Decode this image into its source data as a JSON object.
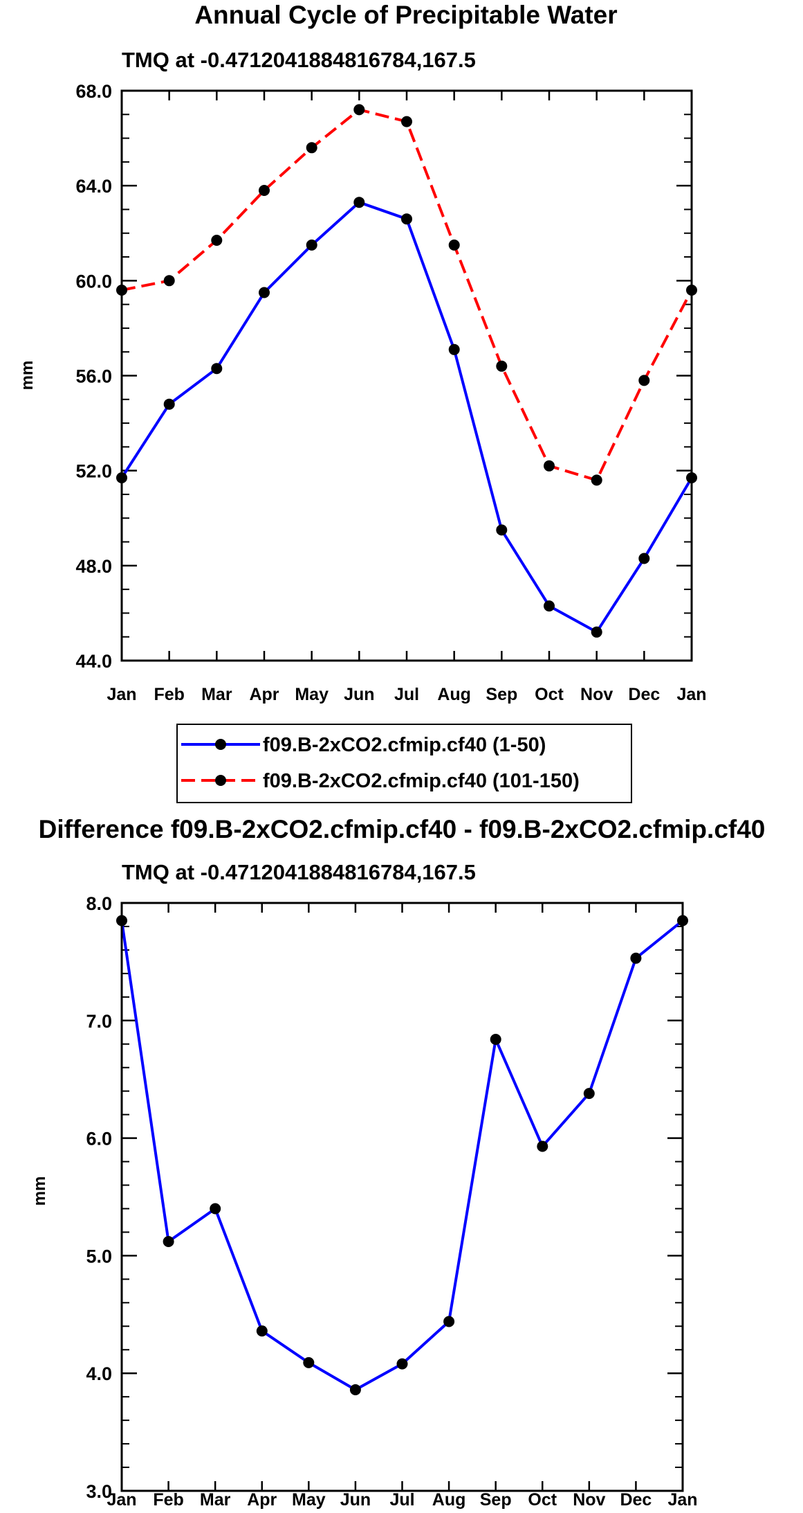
{
  "chart_data": [
    {
      "type": "line",
      "title": "Annual Cycle of Precipitable Water",
      "subtitle": "TMQ at -0.4712041884816784,167.5",
      "xlabel": "",
      "ylabel": "mm",
      "categories": [
        "Jan",
        "Feb",
        "Mar",
        "Apr",
        "May",
        "Jun",
        "Jul",
        "Aug",
        "Sep",
        "Oct",
        "Nov",
        "Dec",
        "Jan"
      ],
      "ylim": [
        44.0,
        68.0
      ],
      "yticks": [
        "44.0",
        "48.0",
        "52.0",
        "56.0",
        "60.0",
        "64.0",
        "68.0"
      ],
      "series": [
        {
          "name": "f09.B-2xCO2.cfmip.cf40 (1-50)",
          "color": "#0000ff",
          "dash": "solid",
          "values": [
            51.7,
            54.8,
            56.3,
            59.5,
            61.5,
            63.3,
            62.6,
            57.1,
            49.5,
            46.3,
            45.2,
            48.3,
            51.7
          ]
        },
        {
          "name": "f09.B-2xCO2.cfmip.cf40 (101-150)",
          "color": "#ff0000",
          "dash": "dashed",
          "values": [
            59.6,
            60.0,
            61.7,
            63.8,
            65.6,
            67.2,
            66.7,
            61.5,
            56.4,
            52.2,
            51.6,
            55.8,
            59.6
          ]
        }
      ],
      "legend": "below"
    },
    {
      "type": "line",
      "title": "Difference f09.B-2xCO2.cfmip.cf40 - f09.B-2xCO2.cfmip.cf40",
      "subtitle": "TMQ at -0.4712041884816784,167.5",
      "xlabel": "",
      "ylabel": "mm",
      "categories": [
        "Jan",
        "Feb",
        "Mar",
        "Apr",
        "May",
        "Jun",
        "Jul",
        "Aug",
        "Sep",
        "Oct",
        "Nov",
        "Dec",
        "Jan"
      ],
      "ylim": [
        3.0,
        8.0
      ],
      "yticks": [
        "3.0",
        "4.0",
        "5.0",
        "6.0",
        "7.0",
        "8.0"
      ],
      "series": [
        {
          "name": "difference",
          "color": "#0000ff",
          "dash": "solid",
          "values": [
            7.85,
            5.12,
            5.4,
            4.36,
            4.09,
            3.86,
            4.08,
            4.44,
            6.84,
            5.93,
            6.38,
            7.53,
            7.85
          ]
        }
      ]
    }
  ]
}
